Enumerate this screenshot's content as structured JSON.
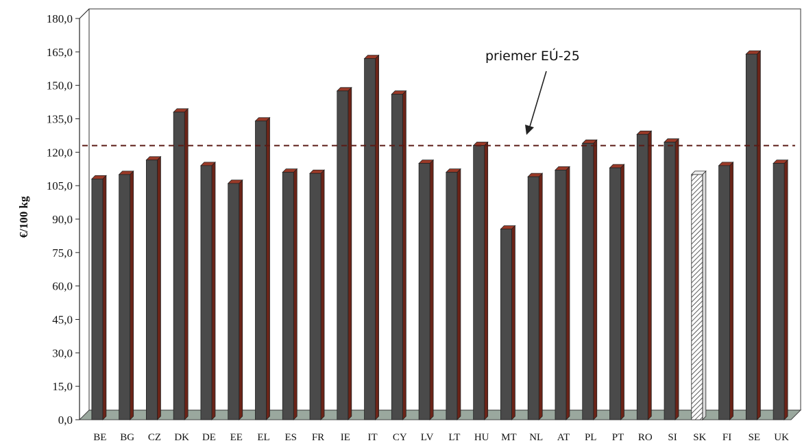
{
  "chart_data": {
    "type": "bar",
    "title": "",
    "xlabel": "",
    "ylabel": "€/100 kg",
    "ylim": [
      0,
      180
    ],
    "ytick_labels": [
      "0,0",
      "15,0",
      "30,0",
      "45,0",
      "60,0",
      "75,0",
      "90,0",
      "105,0",
      "120,0",
      "135,0",
      "150,0",
      "165,0",
      "180,0"
    ],
    "categories": [
      "BE",
      "BG",
      "CZ",
      "DK",
      "DE",
      "EE",
      "EL",
      "ES",
      "FR",
      "IE",
      "IT",
      "CY",
      "LV",
      "LT",
      "HU",
      "MT",
      "NL",
      "AT",
      "PL",
      "PT",
      "RO",
      "SI",
      "SK",
      "FI",
      "SE",
      "UK"
    ],
    "values": [
      108,
      110,
      116.5,
      138,
      114,
      106,
      134,
      111,
      110.5,
      147.5,
      162,
      146,
      115,
      111,
      123,
      85.5,
      109,
      112,
      124,
      113,
      128,
      124.5,
      110,
      114,
      164,
      115
    ],
    "highlighted_category": "SK",
    "reference_line": {
      "label": "priemer EÚ-25",
      "value": 123,
      "style": "dashed"
    },
    "grid": false,
    "colors": {
      "bar_front": "#4a4a4a",
      "bar_side": "#6b2418",
      "bar_top": "#9a3a28",
      "floor": "#9aa89e",
      "reference": "#5a1a14"
    }
  }
}
